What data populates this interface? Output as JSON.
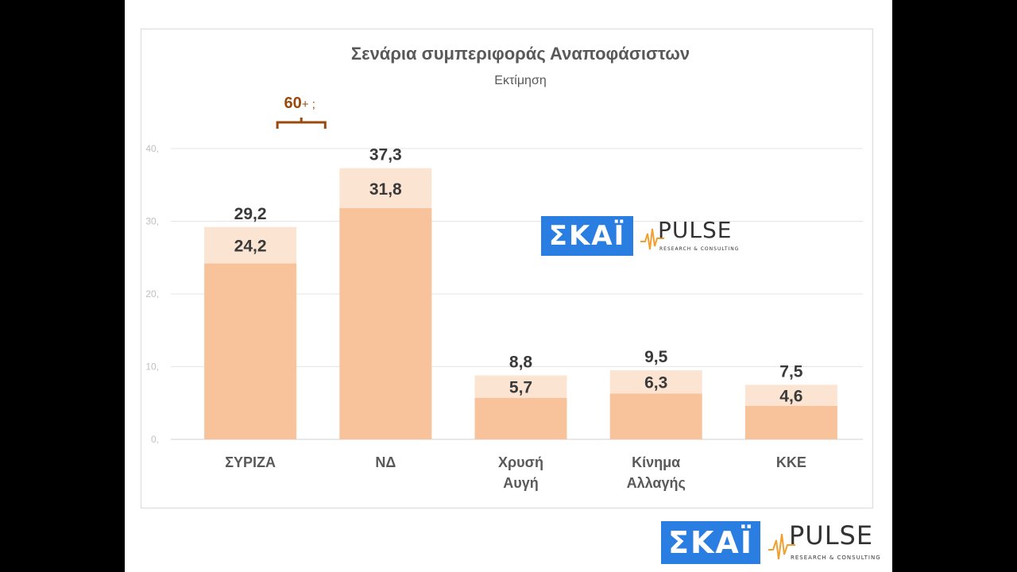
{
  "chart_data": {
    "type": "bar",
    "title": "Σενάρια συμπεριφοράς Αναποφάσιστων",
    "subtitle": "Εκτίμηση",
    "categories": [
      [
        "ΣΥΡΙΖΑ"
      ],
      [
        "ΝΔ"
      ],
      [
        "Χρυσή",
        "Αυγή"
      ],
      [
        "Κίνημα",
        "Αλλαγής"
      ],
      [
        "ΚΚΕ"
      ]
    ],
    "series": [
      {
        "values": [
          24.2,
          31.8,
          5.7,
          6.3,
          4.6
        ],
        "color": "#f8c39a"
      },
      {
        "values": [
          29.2,
          37.3,
          8.8,
          9.5,
          7.5
        ],
        "color": "#fce4d2"
      }
    ],
    "labels_total": [
      "29,2",
      "37,3",
      "8,8",
      "9,5",
      "7,5"
    ],
    "labels_base": [
      "24,2",
      "31,8",
      "5,7",
      "6,3",
      "4,6"
    ],
    "yticks": [
      "0,",
      "10,",
      "20,",
      "30,",
      "40,"
    ],
    "ylim": [
      0,
      40
    ],
    "grid": true,
    "annotation": {
      "text_main": "60",
      "text_suffix": "+ ;",
      "color": "#9a4a0e"
    }
  },
  "logos": {
    "skai": "ΣΚΑΪ",
    "pulse": "PULSE",
    "pulse_sub": "RESEARCH & CONSULTING"
  }
}
